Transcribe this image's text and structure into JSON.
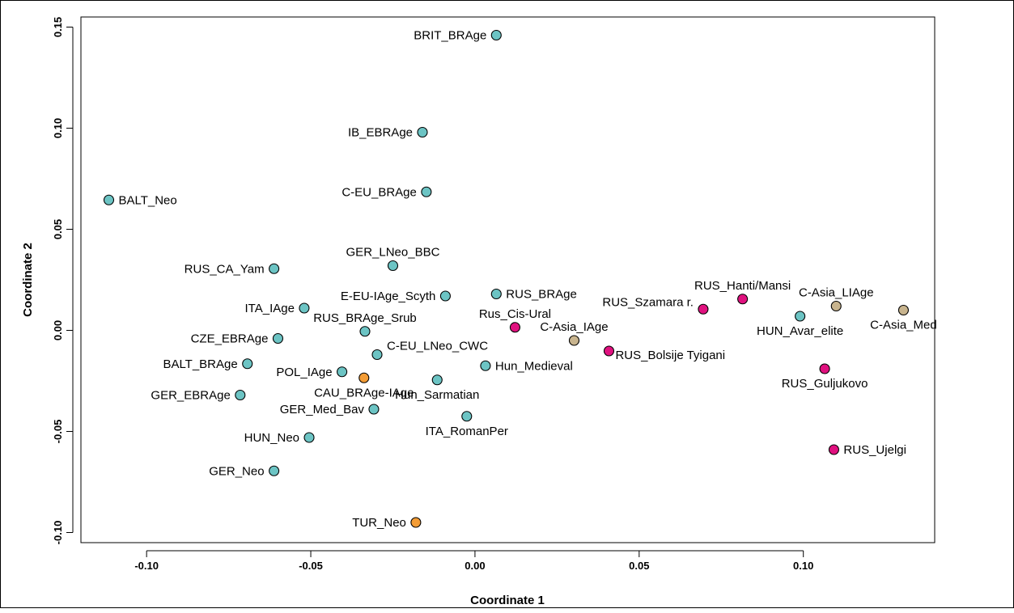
{
  "chart_data": {
    "type": "scatter",
    "title": "",
    "xlabel": "Coordinate 1",
    "ylabel": "Coordinate 2",
    "xlim": [
      -0.12,
      0.14
    ],
    "ylim": [
      -0.105,
      0.155
    ],
    "grid": false,
    "legend": "none",
    "x_ticks": [
      {
        "value": -0.1,
        "label": "-0.10"
      },
      {
        "value": -0.05,
        "label": "-0.05"
      },
      {
        "value": 0.0,
        "label": "0.00"
      },
      {
        "value": 0.05,
        "label": "0.05"
      },
      {
        "value": 0.1,
        "label": "0.10"
      }
    ],
    "y_ticks": [
      {
        "value": -0.1,
        "label": "-0.10"
      },
      {
        "value": -0.05,
        "label": "-0.05"
      },
      {
        "value": 0.0,
        "label": "0.00"
      },
      {
        "value": 0.05,
        "label": "0.05"
      },
      {
        "value": 0.1,
        "label": "0.10"
      },
      {
        "value": 0.15,
        "label": "0.15"
      }
    ],
    "colors": {
      "teal": "#6cc4c4",
      "orange": "#f39c35",
      "magenta": "#e0117f",
      "tan": "#c8b48e",
      "outline": "#000000"
    },
    "points": [
      {
        "label": "BRIT_BRAge",
        "x": 0.0065,
        "y": 0.146,
        "color": "teal",
        "label_pos": "left"
      },
      {
        "label": "IB_EBRAge",
        "x": -0.016,
        "y": 0.098,
        "color": "teal",
        "label_pos": "left"
      },
      {
        "label": "C-EU_BRAge",
        "x": -0.0148,
        "y": 0.0685,
        "color": "teal",
        "label_pos": "left"
      },
      {
        "label": "BALT_Neo",
        "x": -0.1115,
        "y": 0.0645,
        "color": "teal",
        "label_pos": "right"
      },
      {
        "label": "GER_LNeo_BBC",
        "x": -0.025,
        "y": 0.032,
        "color": "teal",
        "label_pos": "above"
      },
      {
        "label": "RUS_CA_Yam",
        "x": -0.0612,
        "y": 0.0305,
        "color": "teal",
        "label_pos": "left"
      },
      {
        "label": "E-EU-IAge_Scyth",
        "x": -0.009,
        "y": 0.017,
        "color": "teal",
        "label_pos": "left"
      },
      {
        "label": "RUS_BRAge",
        "x": 0.0065,
        "y": 0.018,
        "color": "teal",
        "label_pos": "right"
      },
      {
        "label": "ITA_IAge",
        "x": -0.052,
        "y": 0.011,
        "color": "teal",
        "label_pos": "left"
      },
      {
        "label": "RUS_BRAge_Srub",
        "x": -0.0335,
        "y": -0.0005,
        "color": "teal",
        "label_pos": "above"
      },
      {
        "label": "CZE_EBRAge",
        "x": -0.06,
        "y": -0.004,
        "color": "teal",
        "label_pos": "left"
      },
      {
        "label": "C-EU_LNeo_CWC",
        "x": -0.0298,
        "y": -0.012,
        "color": "teal",
        "label_pos": "right-up"
      },
      {
        "label": "BALT_BRAge",
        "x": -0.0693,
        "y": -0.0165,
        "color": "teal",
        "label_pos": "left"
      },
      {
        "label": "Hun_Medieval",
        "x": 0.0032,
        "y": -0.0175,
        "color": "teal",
        "label_pos": "right"
      },
      {
        "label": "POL_IAge",
        "x": -0.0405,
        "y": -0.0205,
        "color": "teal",
        "label_pos": "left"
      },
      {
        "label": "CAU_BRAge-IAge",
        "x": -0.0338,
        "y": -0.0235,
        "color": "orange",
        "label_pos": "below"
      },
      {
        "label": "Hun_Sarmatian",
        "x": -0.0115,
        "y": -0.0245,
        "color": "teal",
        "label_pos": "below"
      },
      {
        "label": "GER_EBRAge",
        "x": -0.0715,
        "y": -0.032,
        "color": "teal",
        "label_pos": "left"
      },
      {
        "label": "GER_Med_Bav",
        "x": -0.0308,
        "y": -0.039,
        "color": "teal",
        "label_pos": "left"
      },
      {
        "label": "ITA_RomanPer",
        "x": -0.0025,
        "y": -0.0425,
        "color": "teal",
        "label_pos": "below"
      },
      {
        "label": "HUN_Neo",
        "x": -0.0505,
        "y": -0.053,
        "color": "teal",
        "label_pos": "left"
      },
      {
        "label": "GER_Neo",
        "x": -0.0612,
        "y": -0.0695,
        "color": "teal",
        "label_pos": "left"
      },
      {
        "label": "TUR_Neo",
        "x": -0.018,
        "y": -0.095,
        "color": "orange",
        "label_pos": "left"
      },
      {
        "label": "Rus_Cis-Ural",
        "x": 0.0122,
        "y": 0.0015,
        "color": "magenta",
        "label_pos": "above"
      },
      {
        "label": "C-Asia_IAge",
        "x": 0.0302,
        "y": -0.005,
        "color": "tan",
        "label_pos": "above"
      },
      {
        "label": "RUS_Bolsije Tyigani",
        "x": 0.0408,
        "y": -0.0102,
        "color": "magenta",
        "label_pos": "right-down"
      },
      {
        "label": "RUS_Szamara r.",
        "x": 0.0695,
        "y": 0.0105,
        "color": "magenta",
        "label_pos": "left-up"
      },
      {
        "label": "RUS_Hanti/Mansi",
        "x": 0.0815,
        "y": 0.0155,
        "color": "magenta",
        "label_pos": "above"
      },
      {
        "label": "HUN_Avar_elite",
        "x": 0.099,
        "y": 0.007,
        "color": "teal",
        "label_pos": "below"
      },
      {
        "label": "C-Asia_LIAge",
        "x": 0.11,
        "y": 0.012,
        "color": "tan",
        "label_pos": "above"
      },
      {
        "label": "C-Asia_Med",
        "x": 0.1305,
        "y": 0.01,
        "color": "tan",
        "label_pos": "below"
      },
      {
        "label": "RUS_Guljukovo",
        "x": 0.1065,
        "y": -0.019,
        "color": "magenta",
        "label_pos": "below"
      },
      {
        "label": "RUS_Ujelgi",
        "x": 0.1093,
        "y": -0.059,
        "color": "magenta",
        "label_pos": "right"
      }
    ]
  }
}
